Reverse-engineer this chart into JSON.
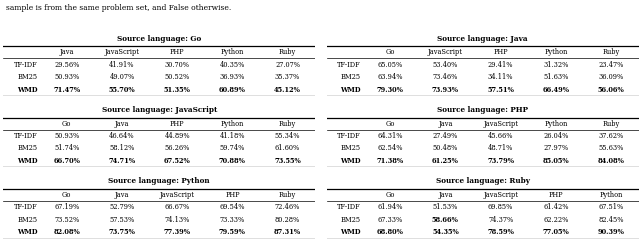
{
  "tables": [
    {
      "title": "Source language: Go",
      "cols": [
        "",
        "Java",
        "JavaScript",
        "PHP",
        "Python",
        "Ruby"
      ],
      "rows": [
        [
          "TF-IDF",
          "29.56%",
          "41.91%",
          "30.70%",
          "40.35%",
          "27.07%"
        ],
        [
          "BM25",
          "50.93%",
          "49.07%",
          "50.52%",
          "36.93%",
          "35.37%"
        ],
        [
          "WMD",
          "71.47%",
          "55.70%",
          "51.35%",
          "60.89%",
          "45.12%"
        ]
      ],
      "bold_row": 2
    },
    {
      "title": "Source language: Java",
      "cols": [
        "",
        "Go",
        "JavaScript",
        "PHP",
        "Python",
        "Ruby"
      ],
      "rows": [
        [
          "TF-IDF",
          "65.05%",
          "53.40%",
          "29.41%",
          "31.32%",
          "23.47%"
        ],
        [
          "BM25",
          "63.94%",
          "73.46%",
          "34.11%",
          "51.63%",
          "36.09%"
        ],
        [
          "WMD",
          "79.30%",
          "73.93%",
          "57.51%",
          "66.49%",
          "56.06%"
        ]
      ],
      "bold_row": 2
    },
    {
      "title": "Source language: JavaScript",
      "cols": [
        "",
        "Go",
        "Java",
        "PHP",
        "Python",
        "Ruby"
      ],
      "rows": [
        [
          "TF-IDF",
          "50.93%",
          "46.64%",
          "44.89%",
          "41.18%",
          "55.34%"
        ],
        [
          "BM25",
          "51.74%",
          "58.12%",
          "56.26%",
          "59.74%",
          "61.60%"
        ],
        [
          "WMD",
          "66.70%",
          "74.71%",
          "67.52%",
          "70.88%",
          "73.55%"
        ]
      ],
      "bold_row": 2
    },
    {
      "title": "Source language: PHP",
      "cols": [
        "",
        "Go",
        "Java",
        "JavaScript",
        "Python",
        "Ruby"
      ],
      "rows": [
        [
          "TF-IDF",
          "64.31%",
          "27.49%",
          "45.66%",
          "26.04%",
          "37.62%"
        ],
        [
          "BM25",
          "62.54%",
          "50.48%",
          "48.71%",
          "27.97%",
          "55.63%"
        ],
        [
          "WMD",
          "71.38%",
          "61.25%",
          "73.79%",
          "85.05%",
          "84.08%"
        ]
      ],
      "bold_row": 2
    },
    {
      "title": "Source language: Python",
      "cols": [
        "",
        "Go",
        "Java",
        "JavaScript",
        "PHP",
        "Ruby"
      ],
      "rows": [
        [
          "TF-IDF",
          "67.19%",
          "52.79%",
          "66.67%",
          "69.54%",
          "72.46%"
        ],
        [
          "BM25",
          "73.52%",
          "57.53%",
          "74.13%",
          "73.33%",
          "80.28%"
        ],
        [
          "WMD",
          "82.08%",
          "73.75%",
          "77.39%",
          "79.59%",
          "87.31%"
        ]
      ],
      "bold_row": 2
    },
    {
      "title": "Source language: Ruby",
      "cols": [
        "",
        "Go",
        "Java",
        "JavaScript",
        "PHP",
        "Python"
      ],
      "rows": [
        [
          "TF-IDF",
          "61.94%",
          "51.53%",
          "69.85%",
          "61.42%",
          "67.51%"
        ],
        [
          "BM25",
          "67.33%",
          "58.66%",
          "74.37%",
          "62.22%",
          "82.45%"
        ],
        [
          "WMD",
          "68.80%",
          "54.35%",
          "78.59%",
          "77.05%",
          "90.39%"
        ]
      ],
      "bold_row": 2,
      "bold_cells": [
        [
          1,
          2
        ]
      ]
    }
  ],
  "text_above": "sample is from the same problem set, and False otherwise.",
  "font_size": 4.8,
  "title_font_size": 5.2,
  "col_font_size": 4.8,
  "background": "white"
}
